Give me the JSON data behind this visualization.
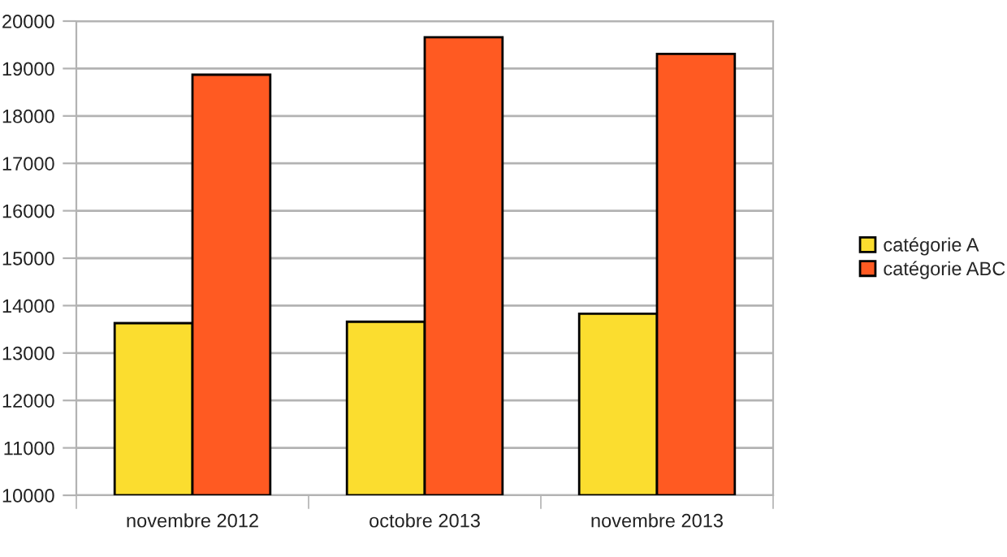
{
  "chart_data": {
    "type": "bar",
    "categories": [
      "novembre 2012",
      "octobre 2013",
      "novembre 2013"
    ],
    "series": [
      {
        "name": "catégorie A",
        "color": "#fbdd2f",
        "values": [
          13630,
          13660,
          13830
        ]
      },
      {
        "name": "catégorie ABC",
        "color": "#ff5a22",
        "values": [
          18870,
          19660,
          19310
        ]
      }
    ],
    "ylim": [
      10000,
      20000
    ],
    "yticks": [
      10000,
      11000,
      12000,
      13000,
      14000,
      15000,
      16000,
      17000,
      18000,
      19000,
      20000
    ],
    "grid": "y",
    "legend": "right"
  }
}
